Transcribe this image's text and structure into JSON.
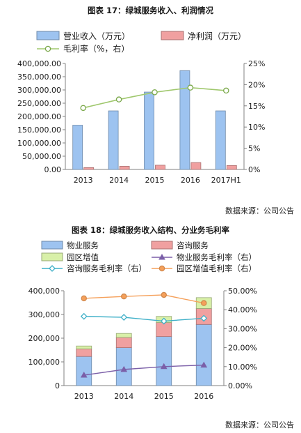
{
  "chart_data": [
    {
      "type": "bar",
      "title": "图表 17：绿城服务收入、利润情况",
      "source": "数据来源：公司公告",
      "categories": [
        "2013",
        "2014",
        "2015",
        "2016",
        "2017H1"
      ],
      "series": [
        {
          "name": "营业收入（万元）",
          "type": "bar",
          "axis": "left",
          "color": "#9dc3f0",
          "values": [
            167000,
            221000,
            292000,
            373000,
            221000
          ]
        },
        {
          "name": "净利润（万元）",
          "type": "bar",
          "axis": "left",
          "color": "#f0a0a0",
          "values": [
            7000,
            12000,
            16000,
            26000,
            15000
          ]
        },
        {
          "name": "毛利率（%，右）",
          "type": "line",
          "axis": "right",
          "color": "#a0c86e",
          "values": [
            14.5,
            16.5,
            18.2,
            19.3,
            18.6
          ]
        }
      ],
      "y_left": {
        "min": 0,
        "max": 400000,
        "step": 50000,
        "ticks": [
          "0.00",
          "50,000.00",
          "100,000.00",
          "150,000.00",
          "200,000.00",
          "250,000.00",
          "300,000.00",
          "350,000.00",
          "400,000.00"
        ]
      },
      "y_right": {
        "min": 0,
        "max": 25,
        "step": 5,
        "ticks": [
          "0%",
          "5%",
          "10%",
          "15%",
          "20%",
          "25%"
        ]
      },
      "grid": false,
      "legend": "top"
    },
    {
      "type": "bar",
      "stacked": true,
      "title": "图表 18：绿城服务收入结构、分业务毛利率",
      "source": "数据来源：公司公告",
      "categories": [
        "2013",
        "2014",
        "2015",
        "2016"
      ],
      "series": [
        {
          "name": "物业服务",
          "type": "bar",
          "axis": "left",
          "color": "#9dc3f0",
          "values": [
            123000,
            160000,
            207000,
            258000
          ]
        },
        {
          "name": "咨询服务",
          "type": "bar",
          "axis": "left",
          "color": "#f0a0a0",
          "values": [
            32000,
            43000,
            59000,
            67000
          ]
        },
        {
          "name": "园区增值",
          "type": "bar",
          "axis": "left",
          "color": "#d8f0a8",
          "values": [
            12000,
            17000,
            26000,
            46000
          ]
        },
        {
          "name": "物业服务毛利率（右）",
          "type": "line",
          "axis": "right",
          "color": "#7b5fa8",
          "marker": "triangle",
          "values": [
            5.5,
            8.5,
            10.0,
            10.8
          ]
        },
        {
          "name": "咨询服务毛利率（右）",
          "type": "line",
          "axis": "right",
          "color": "#3fb0c8",
          "marker": "diamond",
          "values": [
            36.5,
            36.0,
            34.0,
            35.5
          ]
        },
        {
          "name": "园区增值毛利率（右）",
          "type": "line",
          "axis": "right",
          "color": "#f5a05a",
          "marker": "circle",
          "values": [
            46.0,
            47.0,
            47.8,
            43.5
          ]
        }
      ],
      "y_left": {
        "min": 0,
        "max": 400000,
        "step": 100000,
        "ticks": [
          "0",
          "100,000",
          "200,000",
          "300,000",
          "400,000"
        ]
      },
      "y_right": {
        "min": 0,
        "max": 50,
        "step": 10,
        "ticks": [
          "0.00%",
          "10.00%",
          "20.00%",
          "30.00%",
          "40.00%",
          "50.00%"
        ]
      },
      "grid": false,
      "legend": "top"
    }
  ]
}
